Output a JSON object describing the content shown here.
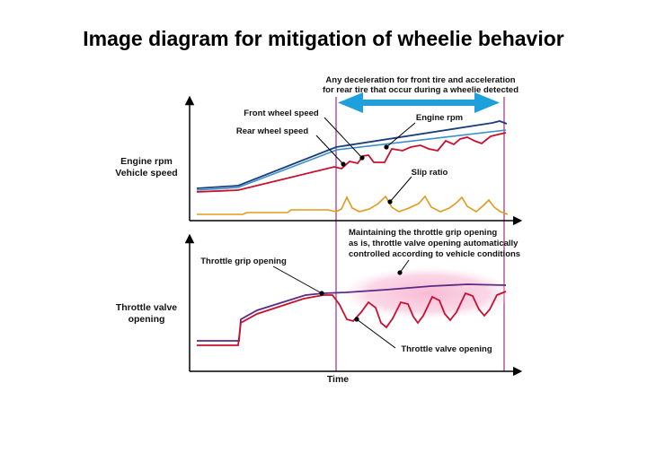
{
  "title": "Image diagram for mitigation of wheelie behavior",
  "detection_note": {
    "line1": "Any deceleration for front tire and acceleration",
    "line2": "for rear tire that occur during a wheelie detected"
  },
  "top_chart": {
    "ylabel_line1": "Engine rpm",
    "ylabel_line2": "Vehicle speed",
    "labels": {
      "front_wheel_speed": "Front wheel speed",
      "rear_wheel_speed": "Rear wheel speed",
      "engine_rpm": "Engine rpm",
      "slip_ratio": "Slip ratio"
    }
  },
  "bottom_chart": {
    "ylabel_line1": "Throttle valve",
    "ylabel_line2": "opening",
    "annotation": {
      "line1": "Maintaining the throttle grip opening",
      "line2": "as is, throttle valve opening automatically",
      "line3": "controlled according to vehicle conditions"
    },
    "labels": {
      "throttle_grip_opening": "Throttle grip opening",
      "throttle_valve_opening": "Throttle valve opening"
    }
  },
  "xlabel": "Time",
  "colors": {
    "engine_rpm": "#1a3d7c",
    "front_wheel_speed": "#3a8fc9",
    "rear_wheel_speed": "#c8102e",
    "slip_ratio": "#e09a1c",
    "throttle_grip": "#5b2a86",
    "throttle_valve": "#c8102e",
    "arrow": "#1ea0dc",
    "marker_line": "#a0307a",
    "highlight": "#f4b6cf"
  }
}
